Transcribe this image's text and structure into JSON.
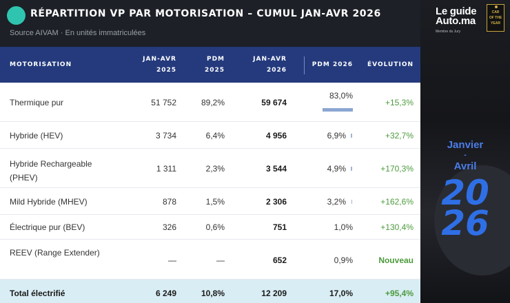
{
  "header": {
    "title": "RÉPARTITION VP PAR MOTORISATION – CUMUL JAN-AVR 2026",
    "subtitle": "Source AIVAM · En unités immatriculées"
  },
  "columns": {
    "motorisation": "MOTORISATION",
    "jan_avr_2025": [
      "JAN-AVR",
      "2025"
    ],
    "pdm_2025": [
      "PDM",
      "2025"
    ],
    "jan_avr_2026": [
      "JAN-AVR",
      "2026"
    ],
    "pdm_2026": "PDM 2026",
    "evolution": "ÉVOLUTION"
  },
  "rows": [
    {
      "label": [
        "Thermique pur"
      ],
      "v2025": "51 752",
      "pdm2025": "89,2%",
      "v2026": "59 674",
      "pdm2026": "83,0%",
      "pdm2026_value": 83.0,
      "evolution": "+15,3%"
    },
    {
      "label": [
        "Hybride (HEV)"
      ],
      "v2025": "3 734",
      "pdm2025": "6,4%",
      "v2026": "4 956",
      "pdm2026": "6,9%",
      "pdm2026_value": 6.9,
      "evolution": "+32,7%"
    },
    {
      "label": [
        "Hybride Rechargeable",
        "(PHEV)"
      ],
      "v2025": "1 311",
      "pdm2025": "2,3%",
      "v2026": "3 544",
      "pdm2026": "4,9%",
      "pdm2026_value": 4.9,
      "evolution": "+170,3%"
    },
    {
      "label": [
        "Mild Hybride (MHEV)"
      ],
      "v2025": "878",
      "pdm2025": "1,5%",
      "v2026": "2 306",
      "pdm2026": "3,2%",
      "pdm2026_value": 3.2,
      "evolution": "+162,6%"
    },
    {
      "label": [
        "Électrique pur (BEV)"
      ],
      "v2025": "326",
      "pdm2025": "0,6%",
      "v2026": "751",
      "pdm2026": "1,0%",
      "pdm2026_value": 1.0,
      "evolution": "+130,4%"
    },
    {
      "label": [
        "REEV (Range Extender)"
      ],
      "v2025": "—",
      "pdm2025": "—",
      "v2026": "652",
      "pdm2026": "0,9%",
      "pdm2026_value": 0.9,
      "evolution": "Nouveau"
    }
  ],
  "total": {
    "label": "Total électrifié",
    "v2025": "6 249",
    "pdm2025": "10,8%",
    "v2026": "12 209",
    "pdm2026": "17,0%",
    "evolution": "+95,4%"
  },
  "side": {
    "brand_line1": "Le guide",
    "brand_line2": "Auto.ma",
    "brand_sub": "Membre du Jury",
    "coty": [
      "CAR",
      "OF THE",
      "YEAR"
    ],
    "period_line1": "Janvier",
    "period_sep": "-",
    "period_line2": "Avril",
    "year_top": "20",
    "year_bottom": "26"
  },
  "colors": {
    "header_bg": "#1d2026",
    "table_header_bg": "#243a7d",
    "accent_teal": "#2fc4b0",
    "positive_green": "#4c9a3c",
    "total_bg": "#d9edf4",
    "year_blue": "#2f6fe6"
  }
}
